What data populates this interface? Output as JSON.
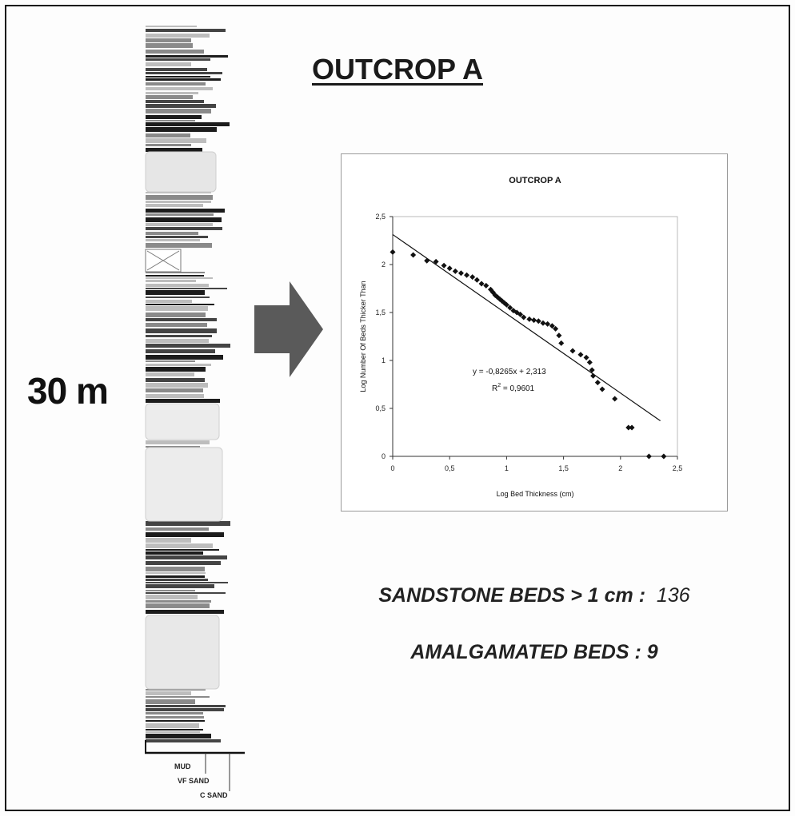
{
  "main_title": "OUTCROP A",
  "scale_label": "30 m",
  "lithology_legend": [
    "MUD",
    "VF SAND",
    "C SAND"
  ],
  "stats": {
    "sandstone_label": "SANDSTONE BEDS > 1 cm :",
    "sandstone_value": "136",
    "amalgamated_label": "AMALGAMATED BEDS :",
    "amalgamated_value": "9"
  },
  "chart_data": {
    "type": "scatter",
    "title": "OUTCROP A",
    "xlabel": "Log Bed Thickness (cm)",
    "ylabel": "Log Number Of Beds Thicker Than",
    "xlim": [
      0,
      2.5
    ],
    "ylim": [
      0,
      2.5
    ],
    "xticks": [
      "0",
      "0,5",
      "1",
      "1,5",
      "2",
      "2,5"
    ],
    "yticks": [
      "0",
      "0,5",
      "1",
      "1,5",
      "2",
      "2,5"
    ],
    "grid": false,
    "legend": "none",
    "equation": "y = -0,8265x + 2,313",
    "r2_label": "R",
    "r2_value": " = 0,9601",
    "trendline": {
      "slope": -0.8265,
      "intercept": 2.313,
      "x_range": [
        0,
        2.35
      ]
    },
    "points": [
      [
        0,
        2.13
      ],
      [
        0.18,
        2.1
      ],
      [
        0.3,
        2.04
      ],
      [
        0.38,
        2.03
      ],
      [
        0.45,
        1.99
      ],
      [
        0.5,
        1.96
      ],
      [
        0.55,
        1.93
      ],
      [
        0.6,
        1.91
      ],
      [
        0.65,
        1.89
      ],
      [
        0.7,
        1.87
      ],
      [
        0.74,
        1.84
      ],
      [
        0.78,
        1.8
      ],
      [
        0.82,
        1.78
      ],
      [
        0.86,
        1.74
      ],
      [
        0.88,
        1.71
      ],
      [
        0.9,
        1.68
      ],
      [
        0.92,
        1.66
      ],
      [
        0.94,
        1.64
      ],
      [
        0.96,
        1.62
      ],
      [
        0.98,
        1.6
      ],
      [
        1.0,
        1.58
      ],
      [
        1.03,
        1.55
      ],
      [
        1.06,
        1.52
      ],
      [
        1.09,
        1.5
      ],
      [
        1.12,
        1.48
      ],
      [
        1.15,
        1.45
      ],
      [
        1.2,
        1.43
      ],
      [
        1.24,
        1.42
      ],
      [
        1.28,
        1.41
      ],
      [
        1.32,
        1.39
      ],
      [
        1.36,
        1.38
      ],
      [
        1.4,
        1.36
      ],
      [
        1.43,
        1.33
      ],
      [
        1.46,
        1.26
      ],
      [
        1.48,
        1.18
      ],
      [
        1.58,
        1.1
      ],
      [
        1.65,
        1.06
      ],
      [
        1.7,
        1.03
      ],
      [
        1.73,
        0.98
      ],
      [
        1.75,
        0.9
      ],
      [
        1.76,
        0.84
      ],
      [
        1.8,
        0.77
      ],
      [
        1.84,
        0.7
      ],
      [
        1.95,
        0.6
      ],
      [
        2.07,
        0.3
      ],
      [
        2.1,
        0.3
      ],
      [
        2.25,
        0.0
      ],
      [
        2.38,
        0.0
      ]
    ]
  }
}
